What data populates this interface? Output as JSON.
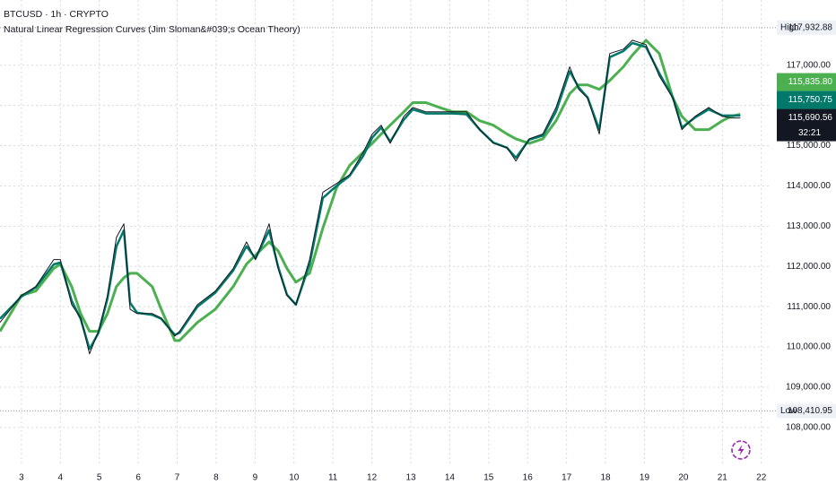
{
  "chart_data": {
    "type": "line",
    "symbol": "BTCUSD · 1h · CRYPTO",
    "title": "Natural Linear Regression Curves (Jim Sloman&#039;s Ocean Theory)",
    "xlim": [
      2.45,
      22.26
    ],
    "ylim": [
      107040,
      118620
    ],
    "xticks": [
      3,
      4,
      5,
      6,
      7,
      8,
      9,
      10,
      11,
      12,
      13,
      14,
      15,
      16,
      17,
      18,
      19,
      20,
      21,
      22
    ],
    "yticks": [
      {
        "value": 108000,
        "label": "108,000.00"
      },
      {
        "value": 109000,
        "label": "109,000.00"
      },
      {
        "value": 110000,
        "label": "110,000.00"
      },
      {
        "value": 111000,
        "label": "111,000.00"
      },
      {
        "value": 112000,
        "label": "112,000.00"
      },
      {
        "value": 113000,
        "label": "113,000.00"
      },
      {
        "value": 114000,
        "label": "114,000.00"
      },
      {
        "value": 115000,
        "label": "115,000.00"
      },
      {
        "value": 116000,
        "label": "116,000.00"
      },
      {
        "value": 117000,
        "label": "117,000.00"
      }
    ],
    "grid": true,
    "high": {
      "label": "High",
      "value": 117932.88,
      "value_label": "117,932.88"
    },
    "low": {
      "label": "Low",
      "value": 108410.95,
      "value_label": "108,410.95"
    },
    "x": [
      2.45,
      3.0,
      3.37,
      3.83,
      4.0,
      4.29,
      4.52,
      4.75,
      4.98,
      5.21,
      5.44,
      5.63,
      5.79,
      5.97,
      6.36,
      6.59,
      6.94,
      7.06,
      7.52,
      7.98,
      8.44,
      8.78,
      9.01,
      9.36,
      9.59,
      9.82,
      10.05,
      10.4,
      10.74,
      11.09,
      11.43,
      11.78,
      12.01,
      12.24,
      12.47,
      12.82,
      13.05,
      13.39,
      13.74,
      14.08,
      14.43,
      14.77,
      15.12,
      15.47,
      15.7,
      16.04,
      16.39,
      16.73,
      17.08,
      17.31,
      17.54,
      17.84,
      18.11,
      18.46,
      18.69,
      19.04,
      19.38,
      19.73,
      19.96,
      20.3,
      20.65,
      21.0,
      21.23,
      21.46
    ],
    "series": [
      {
        "color": "#4caf50",
        "width": 3,
        "values": [
          110390,
          111280,
          111390,
          111950,
          112060,
          111500,
          110830,
          110390,
          110390,
          110830,
          111500,
          111720,
          111830,
          111830,
          111500,
          110940,
          110160,
          110160,
          110610,
          110940,
          111500,
          112060,
          112280,
          112610,
          112390,
          111950,
          111610,
          111830,
          112950,
          113950,
          114510,
          114840,
          115060,
          115290,
          115510,
          115840,
          116070,
          116070,
          115950,
          115840,
          115840,
          115620,
          115510,
          115290,
          115170,
          115060,
          115170,
          115620,
          116290,
          116510,
          116510,
          116400,
          116620,
          116960,
          117250,
          117620,
          117290,
          116180,
          115730,
          115400,
          115400,
          115620,
          115730,
          115780
        ],
        "last": {
          "value": 115835.8,
          "label": "115,835.80"
        }
      },
      {
        "color": "#00796b",
        "width": 2.5,
        "values": [
          110700,
          111250,
          111480,
          112050,
          112100,
          111150,
          110700,
          109950,
          110350,
          111200,
          112500,
          112900,
          111100,
          110850,
          110800,
          110700,
          110300,
          110350,
          111000,
          111350,
          111900,
          112500,
          112200,
          112900,
          112000,
          111300,
          111050,
          112050,
          113700,
          114000,
          114250,
          114750,
          115200,
          115450,
          115100,
          115650,
          115900,
          115800,
          115800,
          115800,
          115780,
          115400,
          115080,
          114950,
          114700,
          115150,
          115250,
          115850,
          116850,
          116450,
          116200,
          115400,
          117200,
          117350,
          117550,
          117450,
          116800,
          116200,
          115450,
          115700,
          115900,
          115750,
          115750,
          115750
        ],
        "last": {
          "value": 115750.75,
          "label": "115,750.75"
        }
      },
      {
        "color": "#131722",
        "width": 1,
        "values": [
          110610,
          111280,
          111500,
          112170,
          112170,
          111050,
          110720,
          109830,
          110390,
          111280,
          112720,
          113060,
          110940,
          110830,
          110830,
          110720,
          110270,
          110390,
          111050,
          111390,
          111950,
          112610,
          112170,
          113060,
          111950,
          111280,
          111050,
          112170,
          113840,
          114060,
          114280,
          114840,
          115290,
          115510,
          115060,
          115730,
          115950,
          115840,
          115840,
          115840,
          115840,
          115400,
          115060,
          114950,
          114620,
          115170,
          115290,
          115950,
          116960,
          116400,
          116180,
          115290,
          117290,
          117400,
          117620,
          117510,
          116730,
          116180,
          115400,
          115730,
          115950,
          115730,
          115690,
          115690
        ],
        "last": {
          "value": 115690.56,
          "label": "115,690.56"
        },
        "countdown": "32:21"
      }
    ]
  }
}
